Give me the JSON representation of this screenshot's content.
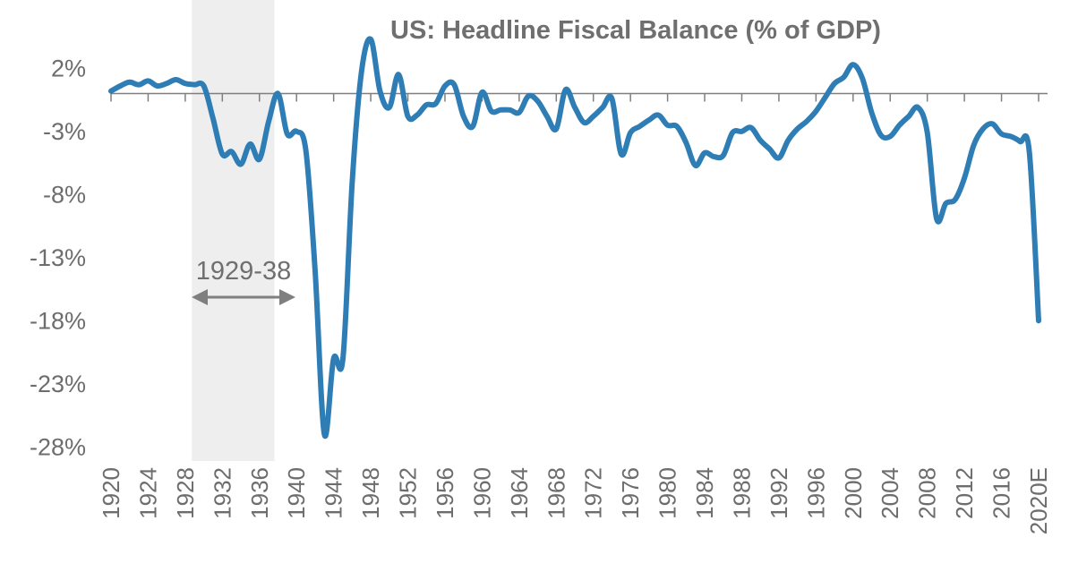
{
  "chart_data": {
    "type": "line",
    "title": "US: Headline Fiscal Balance (% of GDP)",
    "xlabel": "",
    "ylabel": "",
    "ylim": [
      -28,
      4.5
    ],
    "y_ticks": [
      2,
      -3,
      -8,
      -13,
      -18,
      -23,
      -28
    ],
    "y_tick_labels": [
      "2%",
      "-3%",
      "-8%",
      "-13%",
      "-18%",
      "-23%",
      "-28%"
    ],
    "x_tick_labels": [
      "1920",
      "1924",
      "1928",
      "1932",
      "1936",
      "1940",
      "1944",
      "1948",
      "1952",
      "1956",
      "1960",
      "1964",
      "1968",
      "1972",
      "1976",
      "1980",
      "1984",
      "1988",
      "1992",
      "1996",
      "2000",
      "2004",
      "2008",
      "2012",
      "2016",
      "2020E"
    ],
    "x_tick_positions": [
      1920,
      1924,
      1928,
      1932,
      1936,
      1940,
      1944,
      1948,
      1952,
      1956,
      1960,
      1964,
      1968,
      1972,
      1976,
      1980,
      1984,
      1988,
      1992,
      1996,
      2000,
      2004,
      2008,
      2012,
      2016,
      2020
    ],
    "xlim": [
      1920,
      2020
    ],
    "zero_line": 0,
    "shaded_region": {
      "start": 1929,
      "end": 1938,
      "label": "1929-38"
    },
    "colors": {
      "series": "#2e7db5",
      "shade": "#eeeeee",
      "axis": "#7f7f7f",
      "text": "#6d6d6d"
    },
    "series": [
      {
        "name": "US Headline Fiscal Balance (% of GDP)",
        "x": [
          1920,
          1921,
          1922,
          1923,
          1924,
          1925,
          1926,
          1927,
          1928,
          1929,
          1930,
          1931,
          1932,
          1933,
          1934,
          1935,
          1936,
          1937,
          1938,
          1939,
          1940,
          1941,
          1942,
          1943,
          1944,
          1945,
          1946,
          1947,
          1948,
          1949,
          1950,
          1951,
          1952,
          1953,
          1954,
          1955,
          1956,
          1957,
          1958,
          1959,
          1960,
          1961,
          1962,
          1963,
          1964,
          1965,
          1966,
          1967,
          1968,
          1969,
          1970,
          1971,
          1972,
          1973,
          1974,
          1975,
          1976,
          1977,
          1978,
          1979,
          1980,
          1981,
          1982,
          1983,
          1984,
          1985,
          1986,
          1987,
          1988,
          1989,
          1990,
          1991,
          1992,
          1993,
          1994,
          1995,
          1996,
          1997,
          1998,
          1999,
          2000,
          2001,
          2002,
          2003,
          2004,
          2005,
          2006,
          2007,
          2008,
          2009,
          2010,
          2011,
          2012,
          2013,
          2014,
          2015,
          2016,
          2017,
          2018,
          2019,
          2020
        ],
        "values": [
          0.2,
          0.6,
          0.9,
          0.7,
          1.0,
          0.6,
          0.8,
          1.1,
          0.8,
          0.7,
          0.6,
          -2.0,
          -4.8,
          -4.6,
          -5.6,
          -4.0,
          -5.2,
          -2.2,
          0.0,
          -3.2,
          -3.0,
          -4.5,
          -14.0,
          -27.0,
          -21.0,
          -21.0,
          -7.0,
          1.7,
          4.3,
          0.2,
          -1.1,
          1.5,
          -1.8,
          -1.7,
          -0.9,
          -0.8,
          0.6,
          0.7,
          -1.8,
          -2.6,
          0.1,
          -1.4,
          -1.3,
          -1.3,
          -1.5,
          -0.2,
          -0.6,
          -1.8,
          -2.8,
          0.3,
          -1.1,
          -2.3,
          -1.8,
          -1.1,
          -0.4,
          -4.8,
          -3.1,
          -2.6,
          -2.1,
          -1.7,
          -2.5,
          -2.6,
          -3.9,
          -5.7,
          -4.7,
          -5.0,
          -4.9,
          -3.1,
          -3.0,
          -2.7,
          -3.7,
          -4.4,
          -5.1,
          -3.7,
          -2.8,
          -2.2,
          -1.4,
          -0.3,
          0.8,
          1.3,
          2.3,
          1.2,
          -1.5,
          -3.3,
          -3.4,
          -2.5,
          -1.8,
          -1.1,
          -3.1,
          -9.9,
          -8.7,
          -8.4,
          -6.7,
          -4.1,
          -2.8,
          -2.4,
          -3.2,
          -3.4,
          -3.8,
          -4.6,
          -18.0
        ]
      }
    ]
  }
}
